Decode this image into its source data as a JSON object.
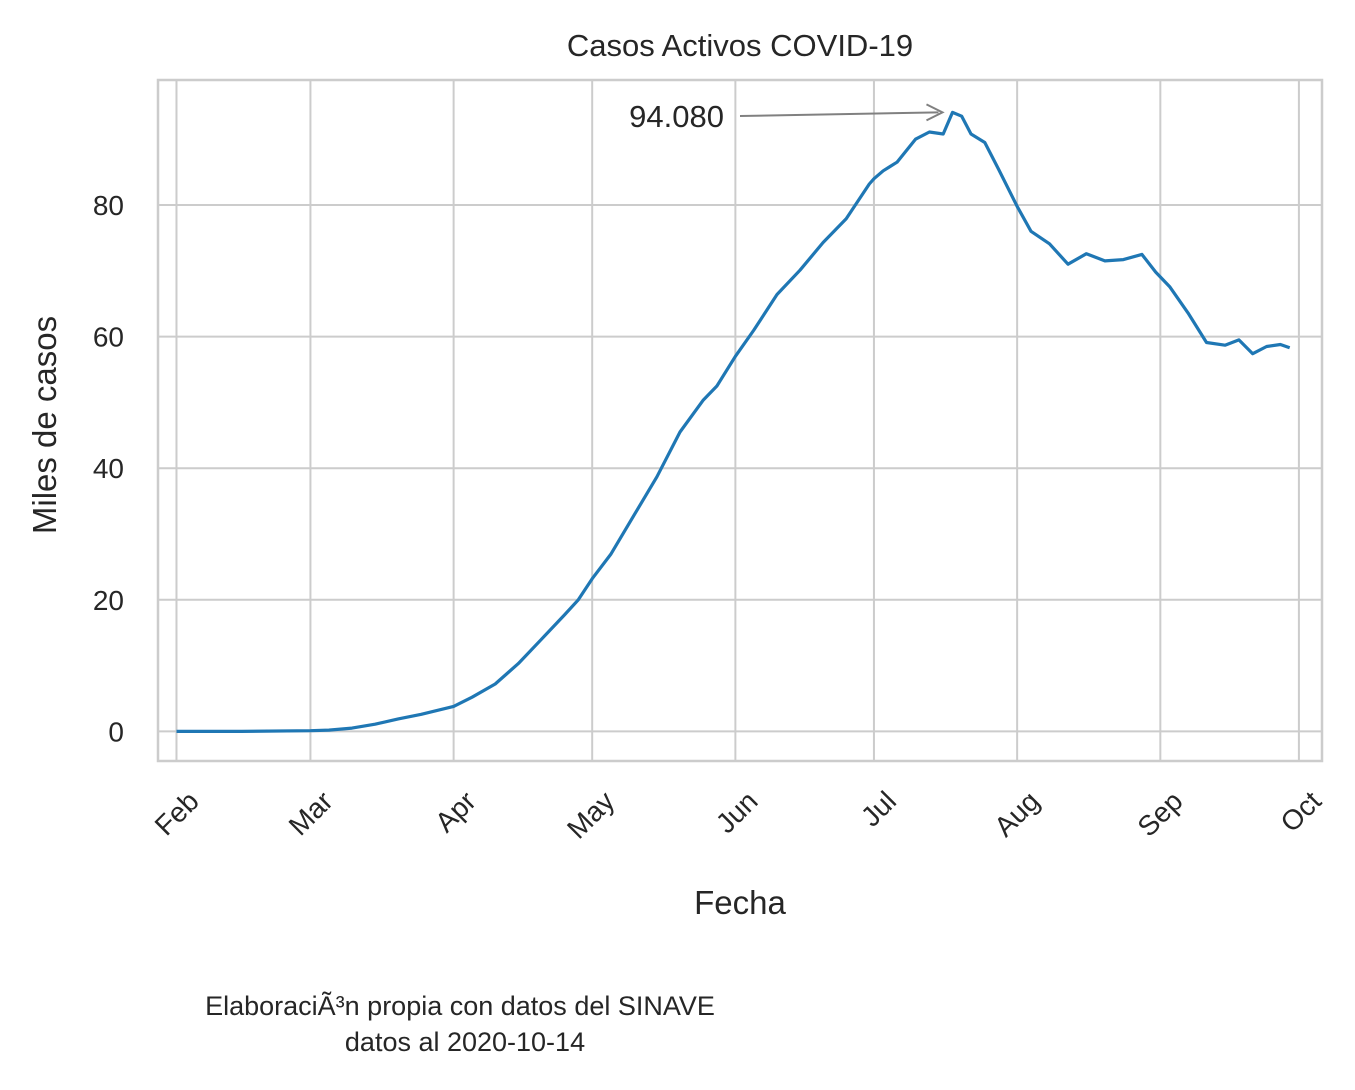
{
  "chart_data": {
    "type": "line",
    "title": "Casos Activos COVID-19",
    "xlabel": "Fecha",
    "ylabel": "Miles de casos",
    "x_ticks": [
      "Feb",
      "Mar",
      "Apr",
      "May",
      "Jun",
      "Jul",
      "Aug",
      "Sep",
      "Oct"
    ],
    "y_ticks": [
      0,
      20,
      40,
      60,
      80
    ],
    "ylim": [
      -4.5,
      99
    ],
    "xlim": [
      "2020-01-28",
      "2020-10-06"
    ],
    "grid": true,
    "annotation": {
      "text": "94.080",
      "x": "2020-07-18",
      "y": 94.08
    },
    "colors": {
      "line": "#1f77b4",
      "grid": "#cccccc",
      "annotation_arrow": "#808080"
    },
    "series": [
      {
        "x": [
          "2020-02-01",
          "2020-02-15",
          "2020-03-01",
          "2020-03-05",
          "2020-03-10",
          "2020-03-15",
          "2020-03-20",
          "2020-03-25",
          "2020-04-01",
          "2020-04-05",
          "2020-04-10",
          "2020-04-15",
          "2020-04-20",
          "2020-04-25",
          "2020-04-28",
          "2020-05-01",
          "2020-05-05",
          "2020-05-10",
          "2020-05-15",
          "2020-05-20",
          "2020-05-25",
          "2020-05-28",
          "2020-06-01",
          "2020-06-05",
          "2020-06-10",
          "2020-06-15",
          "2020-06-20",
          "2020-06-25",
          "2020-06-30",
          "2020-07-01",
          "2020-07-03",
          "2020-07-06",
          "2020-07-10",
          "2020-07-13",
          "2020-07-16",
          "2020-07-18",
          "2020-07-20",
          "2020-07-22",
          "2020-07-25",
          "2020-07-28",
          "2020-08-01",
          "2020-08-04",
          "2020-08-08",
          "2020-08-12",
          "2020-08-16",
          "2020-08-20",
          "2020-08-24",
          "2020-08-28",
          "2020-08-31",
          "2020-09-03",
          "2020-09-07",
          "2020-09-11",
          "2020-09-15",
          "2020-09-18",
          "2020-09-21",
          "2020-09-24",
          "2020-09-27",
          "2020-09-29"
        ],
        "y": [
          0.0,
          0.0,
          0.1,
          0.2,
          0.5,
          1.1,
          1.9,
          2.6,
          3.8,
          5.2,
          7.2,
          10.3,
          14.0,
          17.7,
          20.0,
          23.2,
          26.9,
          32.8,
          38.7,
          45.5,
          50.3,
          52.5,
          57.0,
          61.0,
          66.4,
          70.1,
          74.3,
          77.9,
          83.2,
          84.0,
          85.2,
          86.5,
          90.0,
          91.1,
          90.8,
          94.08,
          93.5,
          90.8,
          89.5,
          85.4,
          79.8,
          76.0,
          74.1,
          71.0,
          72.6,
          71.5,
          71.7,
          72.5,
          69.8,
          67.6,
          63.6,
          59.1,
          58.7,
          59.5,
          57.4,
          58.5,
          58.8,
          58.3
        ]
      }
    ]
  },
  "caption": {
    "line1": "ElaboraciÃ³n propia con datos del SINAVE",
    "line2": "datos al 2020-10-14"
  }
}
